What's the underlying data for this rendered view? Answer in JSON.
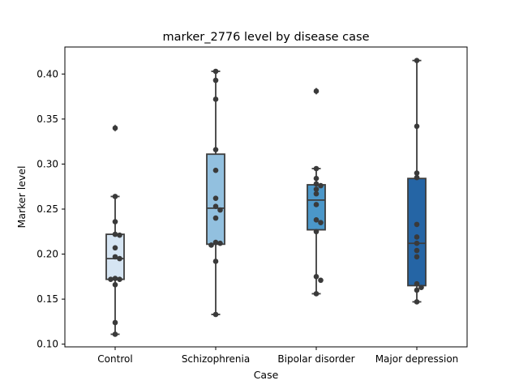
{
  "chart_data": {
    "type": "box",
    "title": "marker_2776 level by disease case",
    "xlabel": "Case",
    "ylabel": "Marker level",
    "ylim": [
      0.097,
      0.43
    ],
    "yticks": [
      0.1,
      0.15,
      0.2,
      0.25,
      0.3,
      0.35,
      0.4
    ],
    "ytick_labels": [
      "0.10",
      "0.15",
      "0.20",
      "0.25",
      "0.30",
      "0.35",
      "0.40"
    ],
    "grid": false,
    "legend": "none",
    "categories": [
      "Control",
      "Schizophrenia",
      "Bipolar disorder",
      "Major depression"
    ],
    "colors": [
      "#d6e5f3",
      "#92c0df",
      "#4b97c9",
      "#2565a5"
    ],
    "boxes": [
      {
        "category": "Control",
        "whisker_low": 0.111,
        "q1": 0.172,
        "median": 0.195,
        "q3": 0.222,
        "whisker_high": 0.264,
        "outliers": [
          0.34
        ]
      },
      {
        "category": "Schizophrenia",
        "whisker_low": 0.133,
        "q1": 0.211,
        "median": 0.251,
        "q3": 0.311,
        "whisker_high": 0.403,
        "outliers": []
      },
      {
        "category": "Bipolar disorder",
        "whisker_low": 0.156,
        "q1": 0.227,
        "median": 0.26,
        "q3": 0.277,
        "whisker_high": 0.295,
        "outliers": [
          0.381
        ]
      },
      {
        "category": "Major depression",
        "whisker_low": 0.147,
        "q1": 0.165,
        "median": 0.212,
        "q3": 0.284,
        "whisker_high": 0.415,
        "outliers": []
      }
    ],
    "points": [
      [
        0.34,
        0.264,
        0.236,
        0.222,
        0.221,
        0.207,
        0.197,
        0.195,
        0.173,
        0.172,
        0.172,
        0.166,
        0.124,
        0.111
      ],
      [
        0.403,
        0.393,
        0.372,
        0.316,
        0.293,
        0.262,
        0.253,
        0.249,
        0.24,
        0.213,
        0.212,
        0.21,
        0.192,
        0.133
      ],
      [
        0.381,
        0.295,
        0.284,
        0.278,
        0.276,
        0.272,
        0.267,
        0.255,
        0.238,
        0.235,
        0.225,
        0.175,
        0.171,
        0.156
      ],
      [
        0.415,
        0.342,
        0.29,
        0.285,
        0.233,
        0.219,
        0.212,
        0.204,
        0.197,
        0.167,
        0.163,
        0.16,
        0.147
      ]
    ]
  }
}
